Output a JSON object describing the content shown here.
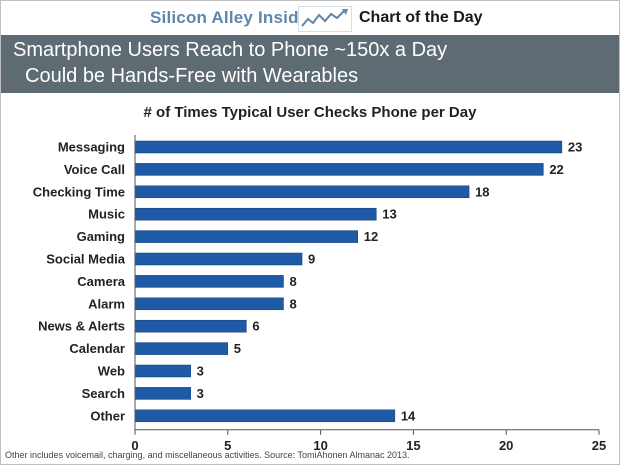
{
  "header": {
    "brand": "Silicon Alley Insider",
    "section": "Chart of the Day",
    "logo_icon": "rising-line-chart-icon"
  },
  "banner": {
    "line1": "Smartphone Users Reach to Phone ~150x a Day",
    "line2": "Could be Hands-Free with Wearables"
  },
  "footnote": "Other includes voicemail, charging, and miscellaneous activities. Source: TomiAhonen Almanac 2013.",
  "colors": {
    "bar": "#1f5aa6",
    "banner": "#5e6b72",
    "brand": "#5f86ab"
  },
  "chart_data": {
    "type": "bar",
    "orientation": "horizontal",
    "title": "# of Times Typical User Checks Phone per Day",
    "categories": [
      "Messaging",
      "Voice Call",
      "Checking Time",
      "Music",
      "Gaming",
      "Social Media",
      "Camera",
      "Alarm",
      "News & Alerts",
      "Calendar",
      "Web",
      "Search",
      "Other"
    ],
    "values": [
      23,
      22,
      18,
      13,
      12,
      9,
      8,
      8,
      6,
      5,
      3,
      3,
      14
    ],
    "xlim": [
      0,
      25
    ],
    "xticks": [
      0,
      5,
      10,
      15,
      20,
      25
    ],
    "xlabel": "",
    "ylabel": "",
    "grid": false,
    "data_labels": true
  }
}
